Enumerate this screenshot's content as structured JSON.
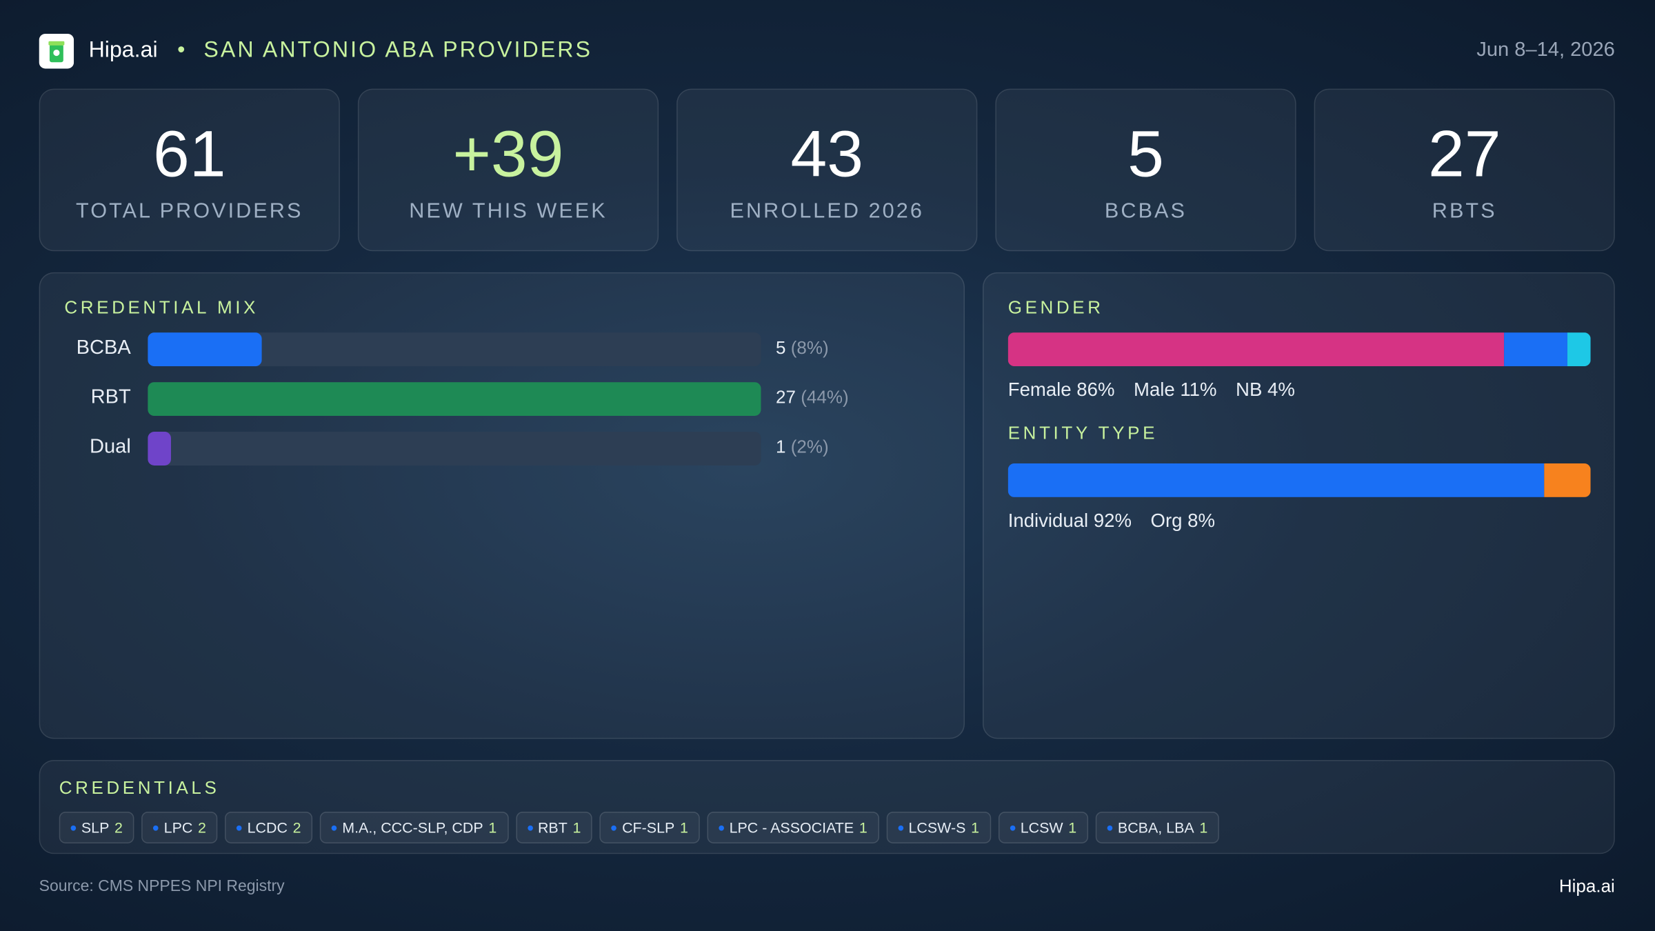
{
  "header": {
    "brand": "Hipa.ai",
    "title": "SAN ANTONIO ABA PROVIDERS",
    "date": "Jun 8–14, 2026"
  },
  "kpis": [
    {
      "value": 61,
      "label": "TOTAL PROVIDERS"
    },
    {
      "value": "+39",
      "label": "NEW THIS WEEK"
    },
    {
      "value": 43,
      "label": "ENROLLED 2026"
    },
    {
      "value": 5,
      "label": "BCBAS"
    },
    {
      "value": 27,
      "label": "RBTS"
    }
  ],
  "chart_data": [
    {
      "type": "bar",
      "orientation": "horizontal",
      "title": "CREDENTIAL MIX",
      "categories": [
        "BCBA",
        "RBT",
        "Dual"
      ],
      "values": [
        5,
        27,
        1
      ],
      "share_labels": [
        "(8%)",
        "(44%)",
        "(2%)"
      ],
      "colors": [
        "#1a6ff5",
        "#1e8a55",
        "#6f44c9"
      ],
      "xlim": [
        0,
        27
      ]
    },
    {
      "type": "stacked_bar",
      "title": "GENDER",
      "xlim": [
        0,
        101
      ],
      "series": [
        {
          "name": "Female",
          "color": "#d63384",
          "values": [
            86
          ],
          "value_labels": [
            "86%"
          ]
        },
        {
          "name": "Male",
          "color": "#1a6ff5",
          "values": [
            11
          ],
          "value_labels": [
            "11%"
          ]
        },
        {
          "name": "NB",
          "color": "#1ec8e6",
          "values": [
            4
          ],
          "value_labels": [
            "4%"
          ]
        }
      ]
    },
    {
      "type": "stacked_bar",
      "title": "ENTITY TYPE",
      "xlim": [
        0,
        100
      ],
      "series": [
        {
          "name": "Individual",
          "color": "#1a6ff5",
          "values": [
            92
          ],
          "value_labels": [
            "92%"
          ]
        },
        {
          "name": "Org",
          "color": "#f7821e",
          "values": [
            8
          ],
          "value_labels": [
            "8%"
          ]
        }
      ]
    }
  ],
  "credentials": {
    "title": "CREDENTIALS",
    "items": [
      {
        "label": "SLP",
        "count": 2
      },
      {
        "label": "LPC",
        "count": 2
      },
      {
        "label": "LCDC",
        "count": 2
      },
      {
        "label": "M.A., CCC-SLP, CDP",
        "count": 1
      },
      {
        "label": "RBT",
        "count": 1
      },
      {
        "label": "CF-SLP",
        "count": 1
      },
      {
        "label": "LPC - ASSOCIATE",
        "count": 1
      },
      {
        "label": "LCSW-S",
        "count": 1
      },
      {
        "label": "LCSW",
        "count": 1
      },
      {
        "label": "BCBA, LBA",
        "count": 1
      }
    ]
  },
  "footer": {
    "source": "Source: CMS NPPES NPI Registry",
    "brand": "Hipa.ai"
  }
}
